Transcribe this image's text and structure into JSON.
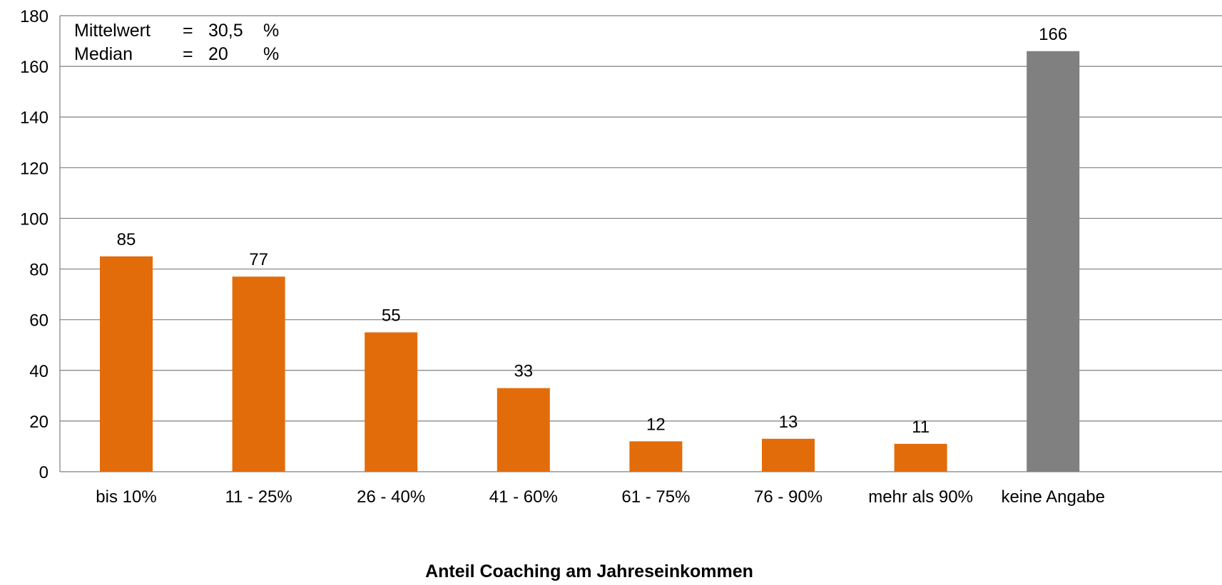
{
  "chart_data": {
    "type": "bar",
    "categories": [
      "bis 10%",
      "11 - 25%",
      "26 - 40%",
      "41 - 60%",
      "61 - 75%",
      "76 - 90%",
      "mehr als 90%",
      "keine Angabe"
    ],
    "values": [
      85,
      77,
      55,
      33,
      12,
      13,
      11,
      166
    ],
    "data_labels": [
      "85",
      "77",
      "55",
      "33",
      "12",
      "13",
      "11",
      "166"
    ],
    "bar_colors": [
      "#e36c0a",
      "#e36c0a",
      "#e36c0a",
      "#e36c0a",
      "#e36c0a",
      "#e36c0a",
      "#e36c0a",
      "#808080"
    ],
    "xlabel": "Anteil Coaching am Jahreseinkommen",
    "ylabel": "",
    "ylim": [
      0,
      180
    ],
    "yticks": [
      0,
      20,
      40,
      60,
      80,
      100,
      120,
      140,
      160,
      180
    ],
    "grid": true,
    "annotations": [
      {
        "label": "Mittelwert",
        "eq": "=",
        "value": "30,5",
        "unit": "%"
      },
      {
        "label": "Median",
        "eq": "=",
        "value": "20",
        "unit": "%"
      }
    ]
  }
}
